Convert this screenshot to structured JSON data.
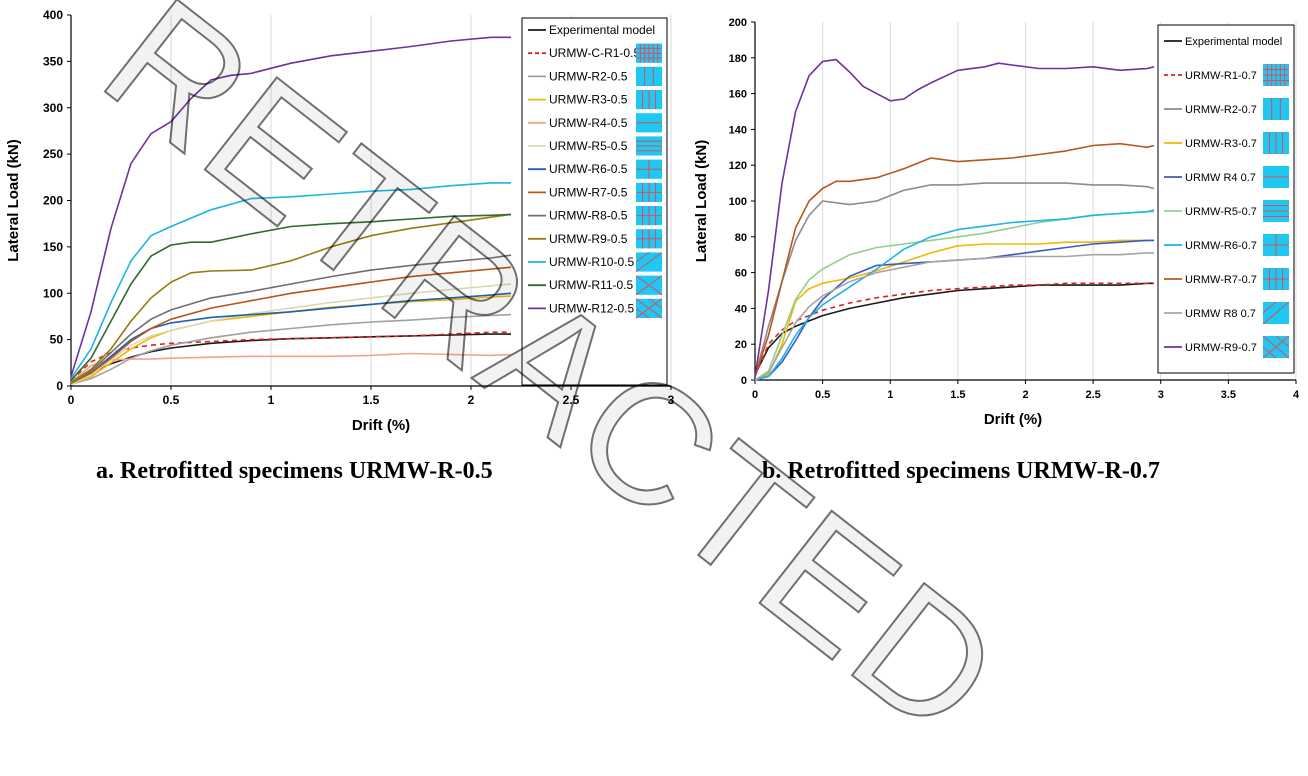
{
  "captions": {
    "a": "a. Retrofitted specimens URMW-R-0.5",
    "b": "b. Retrofitted specimens URMW-R-0.7"
  },
  "watermark": {
    "text": "RETRACTED"
  },
  "chart_data": [
    {
      "type": "line",
      "xlabel": "Drift (%)",
      "ylabel": "Lateral Load (kN)",
      "xlim": [
        0,
        3
      ],
      "ylim": [
        0,
        400
      ],
      "xticks": [
        0,
        0.5,
        1,
        1.5,
        2,
        2.5,
        3
      ],
      "yticks": [
        0,
        50,
        100,
        150,
        200,
        250,
        300,
        350,
        400
      ],
      "xtick_labels": [
        "0",
        "0.5",
        "1",
        "1.5",
        "2",
        "2.5",
        "3"
      ],
      "ytick_labels": [
        "0",
        "50",
        "100",
        "150",
        "200",
        "250",
        "300",
        "350",
        "400"
      ],
      "grid": "vertical",
      "legend_position": "right",
      "series": [
        {
          "name": "Experimental model",
          "color": "#1a1a1a",
          "dash": false,
          "icon": "",
          "x": [
            0,
            0.1,
            0.2,
            0.3,
            0.4,
            0.5,
            0.7,
            0.9,
            1.1,
            1.3,
            1.5,
            1.7,
            1.9,
            2.1,
            2.2
          ],
          "y": [
            5,
            14,
            24,
            31,
            37,
            41,
            46,
            49,
            51,
            52,
            53,
            54,
            55,
            56,
            56
          ]
        },
        {
          "name": "URMW-C-R1-0.5",
          "color": "#e02020",
          "dash": true,
          "icon": "grid",
          "x": [
            0,
            0.1,
            0.2,
            0.3,
            0.4,
            0.5,
            0.7,
            0.9,
            1.1,
            1.3,
            1.5,
            1.7,
            1.9,
            2.1,
            2.2
          ],
          "y": [
            6,
            26,
            36,
            41,
            44,
            46,
            48,
            50,
            51,
            52,
            53,
            54,
            56,
            58,
            58
          ]
        },
        {
          "name": "URMW-R2-0.5",
          "color": "#a0a0a0",
          "dash": false,
          "icon": "vertical",
          "x": [
            0,
            0.1,
            0.2,
            0.3,
            0.4,
            0.5,
            0.7,
            0.9,
            1.1,
            1.3,
            1.5,
            1.7,
            1.9,
            2.1,
            2.2
          ],
          "y": [
            2,
            8,
            18,
            30,
            38,
            44,
            52,
            58,
            62,
            66,
            69,
            71,
            74,
            76,
            77
          ]
        },
        {
          "name": "URMW-R3-0.5",
          "color": "#f0b800",
          "dash": false,
          "icon": "vertical-2",
          "x": [
            0,
            0.1,
            0.2,
            0.3,
            0.4,
            0.5,
            0.7,
            0.9,
            1.1,
            1.3,
            1.5,
            1.7,
            1.9,
            2.1,
            2.2
          ],
          "y": [
            2,
            10,
            25,
            40,
            52,
            60,
            70,
            75,
            80,
            85,
            88,
            91,
            93,
            96,
            97
          ]
        },
        {
          "name": "URMW-R4-0.5",
          "color": "#f4a582",
          "dash": false,
          "icon": "horizontal",
          "x": [
            0,
            0.1,
            0.2,
            0.3,
            0.4,
            0.5,
            0.7,
            0.9,
            1.1,
            1.3,
            1.5,
            1.7,
            1.9,
            2.1,
            2.2
          ],
          "y": [
            4,
            22,
            28,
            29,
            29,
            30,
            31,
            32,
            32,
            32,
            33,
            35,
            34,
            33,
            34
          ]
        },
        {
          "name": "URMW-R5-0.5",
          "color": "#d9d9b3",
          "dash": false,
          "icon": "horizontal-2",
          "x": [
            0,
            0.1,
            0.2,
            0.3,
            0.4,
            0.5,
            0.7,
            0.9,
            1.1,
            1.3,
            1.5,
            1.7,
            1.9,
            2.1,
            2.2
          ],
          "y": [
            2,
            12,
            28,
            44,
            54,
            60,
            70,
            78,
            84,
            90,
            95,
            100,
            104,
            108,
            110
          ]
        },
        {
          "name": "URMW-R6-0.5",
          "color": "#1f5fb4",
          "dash": false,
          "icon": "cross",
          "x": [
            0,
            0.1,
            0.2,
            0.3,
            0.4,
            0.5,
            0.7,
            0.9,
            1.1,
            1.3,
            1.5,
            1.7,
            1.9,
            2.1,
            2.2
          ],
          "y": [
            3,
            14,
            32,
            50,
            62,
            68,
            74,
            77,
            80,
            84,
            88,
            92,
            95,
            98,
            100
          ]
        },
        {
          "name": "URMW-R7-0.5",
          "color": "#b8561c",
          "dash": false,
          "icon": "cross-2",
          "x": [
            0,
            0.1,
            0.2,
            0.3,
            0.4,
            0.5,
            0.7,
            0.9,
            1.1,
            1.3,
            1.5,
            1.7,
            1.9,
            2.1,
            2.2
          ],
          "y": [
            3,
            14,
            30,
            48,
            62,
            72,
            84,
            92,
            100,
            106,
            112,
            118,
            122,
            126,
            128
          ]
        },
        {
          "name": "URMW-R8-0.5",
          "color": "#6e6e6e",
          "dash": false,
          "icon": "cross-3",
          "x": [
            0,
            0.1,
            0.2,
            0.3,
            0.4,
            0.5,
            0.7,
            0.9,
            1.1,
            1.3,
            1.5,
            1.7,
            1.9,
            2.1,
            2.2
          ],
          "y": [
            3,
            16,
            36,
            56,
            72,
            82,
            95,
            102,
            110,
            118,
            125,
            130,
            134,
            138,
            141
          ]
        },
        {
          "name": "URMW-R9-0.5",
          "color": "#9a7a10",
          "dash": false,
          "icon": "cross-4",
          "x": [
            0,
            0.1,
            0.2,
            0.3,
            0.4,
            0.5,
            0.6,
            0.7,
            0.9,
            1.1,
            1.3,
            1.5,
            1.7,
            1.9,
            2.1,
            2.2
          ],
          "y": [
            4,
            18,
            40,
            70,
            95,
            112,
            122,
            124,
            125,
            135,
            150,
            162,
            170,
            176,
            182,
            185
          ]
        },
        {
          "name": "URMW-R10-0.5",
          "color": "#1eb4e6",
          "dash": false,
          "icon": "diagonal",
          "x": [
            0,
            0.1,
            0.2,
            0.3,
            0.4,
            0.5,
            0.7,
            0.9,
            1.1,
            1.3,
            1.5,
            1.7,
            1.9,
            2.1,
            2.2
          ],
          "y": [
            8,
            40,
            90,
            135,
            162,
            172,
            190,
            202,
            204,
            207,
            210,
            212,
            216,
            219,
            219
          ]
        },
        {
          "name": "URMW-R11-0.5",
          "color": "#2e6b2e",
          "dash": false,
          "icon": "diagonal-2",
          "x": [
            0,
            0.1,
            0.2,
            0.3,
            0.4,
            0.5,
            0.6,
            0.7,
            0.9,
            1.1,
            1.3,
            1.5,
            1.7,
            1.9,
            2.1,
            2.2
          ],
          "y": [
            6,
            30,
            70,
            110,
            140,
            152,
            155,
            155,
            164,
            172,
            175,
            177,
            180,
            183,
            184,
            185
          ]
        },
        {
          "name": "URMW-R12-0.5",
          "color": "#7030a0",
          "dash": false,
          "icon": "x-pattern",
          "x": [
            0,
            0.1,
            0.2,
            0.3,
            0.4,
            0.5,
            0.6,
            0.7,
            0.8,
            0.9,
            1.1,
            1.3,
            1.5,
            1.7,
            1.9,
            2.1,
            2.2
          ],
          "y": [
            10,
            80,
            170,
            240,
            272,
            285,
            310,
            330,
            335,
            337,
            348,
            356,
            361,
            366,
            372,
            376,
            376
          ]
        }
      ]
    },
    {
      "type": "line",
      "xlabel": "Drift (%)",
      "ylabel": "Lateral Load (kN)",
      "xlim": [
        0,
        4
      ],
      "ylim": [
        0,
        200
      ],
      "xticks": [
        0,
        0.5,
        1,
        1.5,
        2,
        2.5,
        3,
        3.5,
        4
      ],
      "yticks": [
        0,
        20,
        40,
        60,
        80,
        100,
        120,
        140,
        160,
        180,
        200
      ],
      "xtick_labels": [
        "0",
        "0.5",
        "1",
        "1.5",
        "2",
        "2.5",
        "3",
        "3.5",
        "4"
      ],
      "ytick_labels": [
        "0",
        "20",
        "40",
        "60",
        "80",
        "100",
        "120",
        "140",
        "160",
        "180",
        "200"
      ],
      "grid": "vertical",
      "legend_position": "right",
      "series": [
        {
          "name": "Experimental model",
          "color": "#1a1a1a",
          "dash": false,
          "icon": "",
          "x": [
            0,
            0.1,
            0.2,
            0.3,
            0.4,
            0.5,
            0.7,
            0.9,
            1.1,
            1.3,
            1.5,
            1.7,
            1.9,
            2.1,
            2.3,
            2.5,
            2.7,
            2.9,
            2.95
          ],
          "y": [
            3,
            18,
            26,
            30,
            33,
            36,
            40,
            43,
            46,
            48,
            50,
            51,
            52,
            53,
            53,
            53,
            53,
            54,
            54
          ]
        },
        {
          "name": "URMW-R1-0.7",
          "color": "#e02020",
          "dash": true,
          "icon": "grid",
          "x": [
            0,
            0.1,
            0.2,
            0.3,
            0.4,
            0.5,
            0.7,
            0.9,
            1.1,
            1.3,
            1.5,
            1.7,
            1.9,
            2.1,
            2.3,
            2.5,
            2.7,
            2.9,
            2.95
          ],
          "y": [
            2,
            20,
            28,
            33,
            36,
            39,
            43,
            46,
            48,
            50,
            51,
            52,
            53,
            53,
            54,
            54,
            54,
            54,
            54
          ]
        },
        {
          "name": "URMW-R2-0.7",
          "color": "#8c8c8c",
          "dash": false,
          "icon": "vertical",
          "x": [
            0,
            0.1,
            0.2,
            0.3,
            0.4,
            0.5,
            0.7,
            0.9,
            1.1,
            1.3,
            1.5,
            1.7,
            1.9,
            2.1,
            2.3,
            2.5,
            2.7,
            2.9,
            2.95
          ],
          "y": [
            2,
            30,
            55,
            78,
            92,
            100,
            98,
            100,
            106,
            109,
            109,
            110,
            110,
            110,
            110,
            109,
            109,
            108,
            107
          ]
        },
        {
          "name": "URMW-R3-0.7",
          "color": "#f0b800",
          "dash": false,
          "icon": "vertical-2",
          "x": [
            0,
            0.1,
            0.2,
            0.3,
            0.4,
            0.5,
            0.7,
            0.9,
            1.1,
            1.3,
            1.5,
            1.7,
            1.9,
            2.1,
            2.3,
            2.5,
            2.7,
            2.9,
            2.95
          ],
          "y": [
            0,
            3,
            20,
            44,
            51,
            54,
            57,
            61,
            66,
            71,
            75,
            76,
            76,
            76,
            77,
            77,
            78,
            78,
            78
          ]
        },
        {
          "name": "URMW R4 0.7",
          "color": "#3b5bc4",
          "dash": false,
          "icon": "horizontal",
          "x": [
            0,
            0.1,
            0.2,
            0.3,
            0.4,
            0.5,
            0.7,
            0.9,
            1.1,
            1.3,
            1.5,
            1.7,
            1.9,
            2.1,
            2.3,
            2.5,
            2.7,
            2.9,
            2.95
          ],
          "y": [
            0,
            2,
            10,
            22,
            35,
            45,
            58,
            64,
            65,
            66,
            67,
            68,
            70,
            72,
            74,
            76,
            77,
            78,
            78
          ]
        },
        {
          "name": "URMW-R5-0.7",
          "color": "#90d090",
          "dash": false,
          "icon": "horizontal-2",
          "x": [
            0,
            0.1,
            0.2,
            0.3,
            0.4,
            0.5,
            0.7,
            0.9,
            1.1,
            1.3,
            1.5,
            1.7,
            1.9,
            2.1,
            2.3,
            2.5,
            2.7,
            2.9,
            2.95
          ],
          "y": [
            0,
            5,
            25,
            45,
            56,
            62,
            70,
            74,
            76,
            78,
            80,
            82,
            85,
            88,
            90,
            92,
            93,
            94,
            94
          ]
        },
        {
          "name": "URMW-R6-0.7",
          "color": "#1eb4e6",
          "dash": false,
          "icon": "cross",
          "x": [
            0,
            0.1,
            0.2,
            0.3,
            0.4,
            0.5,
            0.7,
            0.9,
            1.1,
            1.3,
            1.5,
            1.7,
            1.9,
            2.1,
            2.3,
            2.5,
            2.7,
            2.9,
            2.95
          ],
          "y": [
            0,
            2,
            12,
            25,
            35,
            42,
            52,
            62,
            73,
            80,
            84,
            86,
            88,
            89,
            90,
            92,
            93,
            94,
            95
          ]
        },
        {
          "name": "URMW-R7-0.7",
          "color": "#b8561c",
          "dash": false,
          "icon": "cross-2",
          "x": [
            0,
            0.1,
            0.2,
            0.3,
            0.4,
            0.5,
            0.6,
            0.7,
            0.9,
            1.1,
            1.3,
            1.5,
            1.7,
            1.9,
            2.1,
            2.3,
            2.5,
            2.7,
            2.9,
            2.95
          ],
          "y": [
            2,
            25,
            55,
            85,
            100,
            107,
            111,
            111,
            113,
            118,
            124,
            122,
            123,
            124,
            126,
            128,
            131,
            132,
            130,
            131
          ]
        },
        {
          "name": "URMW R8 0.7",
          "color": "#a6a6a6",
          "dash": false,
          "icon": "diagonal",
          "x": [
            0,
            0.1,
            0.2,
            0.3,
            0.4,
            0.5,
            0.7,
            0.9,
            1.1,
            1.3,
            1.5,
            1.7,
            1.9,
            2.1,
            2.3,
            2.5,
            2.7,
            2.9,
            2.95
          ],
          "y": [
            0,
            4,
            18,
            32,
            41,
            47,
            55,
            60,
            63,
            66,
            67,
            68,
            69,
            69,
            69,
            70,
            70,
            71,
            71
          ]
        },
        {
          "name": "URMW-R9-0.7",
          "color": "#7030a0",
          "dash": false,
          "icon": "x-pattern",
          "x": [
            0,
            0.1,
            0.2,
            0.3,
            0.4,
            0.5,
            0.6,
            0.7,
            0.8,
            0.9,
            1.0,
            1.1,
            1.2,
            1.3,
            1.5,
            1.7,
            1.8,
            1.9,
            2.1,
            2.3,
            2.5,
            2.7,
            2.9,
            2.95
          ],
          "y": [
            2,
            50,
            110,
            150,
            170,
            178,
            179,
            172,
            164,
            160,
            156,
            157,
            162,
            166,
            173,
            175,
            177,
            176,
            174,
            174,
            175,
            173,
            174,
            175
          ]
        }
      ]
    }
  ]
}
